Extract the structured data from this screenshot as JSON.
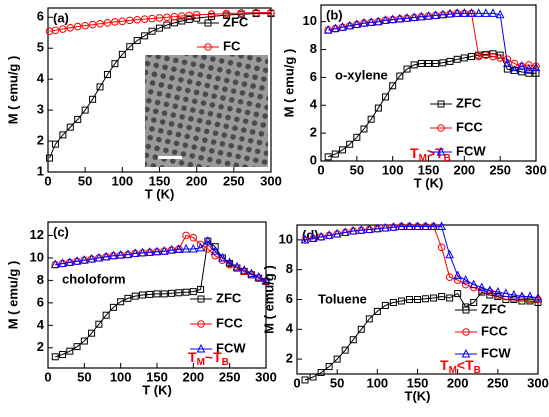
{
  "chart_data": [
    {
      "type": "line",
      "panel_label": "(a)",
      "x_label": "T (K)",
      "y_label": "M ( emu/g )",
      "x": [
        2,
        10,
        20,
        30,
        40,
        50,
        60,
        70,
        80,
        90,
        100,
        110,
        120,
        130,
        140,
        150,
        160,
        170,
        180,
        190,
        200,
        220,
        240,
        260,
        280,
        300
      ],
      "xlim": [
        0,
        300
      ],
      "xticks": [
        0,
        50,
        100,
        150,
        200,
        250,
        300
      ],
      "ylim": [
        1,
        6.3
      ],
      "yticks": [
        1,
        2,
        3,
        4,
        5,
        6
      ],
      "series": [
        {
          "name": "ZFC",
          "color": "#000000",
          "marker": "square",
          "values": [
            1.45,
            1.9,
            2.2,
            2.45,
            2.7,
            3.0,
            3.35,
            3.75,
            4.15,
            4.5,
            4.8,
            5.05,
            5.25,
            5.4,
            5.55,
            5.65,
            5.75,
            5.82,
            5.88,
            5.93,
            5.97,
            6.03,
            6.07,
            6.1,
            6.12,
            6.12
          ]
        },
        {
          "name": "FC",
          "color": "#ff0000",
          "marker": "circle",
          "values": [
            5.55,
            5.58,
            5.62,
            5.66,
            5.7,
            5.73,
            5.76,
            5.79,
            5.82,
            5.85,
            5.87,
            5.9,
            5.92,
            5.94,
            5.96,
            5.98,
            6.0,
            6.02,
            6.04,
            6.06,
            6.08,
            6.1,
            6.12,
            6.14,
            6.15,
            6.15
          ]
        }
      ]
    },
    {
      "type": "line",
      "panel_label": "(b)",
      "x_label": "T (K)",
      "y_label": "M ( emu/g )",
      "annotation": "o-xylene",
      "condition": [
        "T",
        "M",
        ">",
        "T",
        "B"
      ],
      "condition_color": "#ff0000",
      "x": [
        10,
        20,
        30,
        40,
        50,
        60,
        70,
        80,
        90,
        100,
        110,
        120,
        130,
        140,
        150,
        160,
        170,
        180,
        190,
        200,
        210,
        220,
        230,
        240,
        250,
        260,
        270,
        280,
        290,
        300
      ],
      "xlim": [
        0,
        300
      ],
      "xticks": [
        0,
        50,
        100,
        150,
        200,
        250,
        300
      ],
      "ylim": [
        0,
        11.2
      ],
      "yticks": [
        0,
        2,
        4,
        6,
        8,
        10
      ],
      "series": [
        {
          "name": "ZFC",
          "color": "#000000",
          "marker": "square",
          "values": [
            0.3,
            0.5,
            0.8,
            1.2,
            1.7,
            2.3,
            3.0,
            3.8,
            4.6,
            5.4,
            6.1,
            6.6,
            6.9,
            7.0,
            7.0,
            7.0,
            7.05,
            7.15,
            7.3,
            7.4,
            7.5,
            7.6,
            7.65,
            7.7,
            7.6,
            6.6,
            6.5,
            6.4,
            6.3,
            6.3
          ]
        },
        {
          "name": "FCC",
          "color": "#ff0000",
          "marker": "circle",
          "values": [
            9.4,
            9.5,
            9.6,
            9.7,
            9.8,
            9.9,
            9.95,
            10.0,
            10.1,
            10.15,
            10.2,
            10.25,
            10.3,
            10.35,
            10.4,
            10.45,
            10.5,
            10.55,
            10.6,
            10.6,
            10.6,
            7.5,
            7.6,
            7.5,
            7.4,
            7.3,
            7.0,
            6.8,
            6.9,
            6.8
          ]
        },
        {
          "name": "FCW",
          "color": "#0000ff",
          "marker": "triangle",
          "values": [
            9.4,
            9.5,
            9.6,
            9.7,
            9.8,
            9.9,
            9.95,
            10.0,
            10.1,
            10.15,
            10.2,
            10.25,
            10.3,
            10.35,
            10.4,
            10.45,
            10.5,
            10.55,
            10.6,
            10.6,
            10.6,
            10.6,
            10.6,
            10.6,
            10.5,
            7.0,
            6.5,
            6.8,
            6.6,
            6.7
          ]
        }
      ]
    },
    {
      "type": "line",
      "panel_label": "(c)",
      "x_label": "T (K)",
      "y_label": "M ( emu/g )",
      "annotation": "choloform",
      "condition": [
        "T",
        "M",
        "~",
        "T",
        "B"
      ],
      "condition_color": "#ff0000",
      "x": [
        10,
        20,
        30,
        40,
        50,
        60,
        70,
        80,
        90,
        100,
        110,
        120,
        130,
        140,
        150,
        160,
        170,
        180,
        190,
        200,
        210,
        220,
        230,
        240,
        250,
        260,
        270,
        280,
        290,
        300
      ],
      "xlim": [
        0,
        300
      ],
      "xticks": [
        0,
        50,
        100,
        150,
        200,
        250,
        300
      ],
      "ylim": [
        0.2,
        13.2
      ],
      "yticks": [
        2,
        4,
        6,
        8,
        10,
        12
      ],
      "series": [
        {
          "name": "ZFC",
          "color": "#000000",
          "marker": "square",
          "values": [
            1.2,
            1.4,
            1.7,
            2.1,
            2.6,
            3.3,
            4.1,
            4.9,
            5.6,
            6.1,
            6.4,
            6.6,
            6.7,
            6.75,
            6.8,
            6.8,
            6.85,
            6.9,
            6.95,
            7.0,
            7.2,
            11.5,
            11.0,
            10.0,
            9.5,
            9.1,
            8.8,
            8.5,
            8.2,
            7.9
          ]
        },
        {
          "name": "FCC",
          "color": "#ff0000",
          "marker": "circle",
          "values": [
            9.4,
            9.5,
            9.6,
            9.7,
            9.8,
            9.9,
            10.0,
            10.1,
            10.2,
            10.25,
            10.3,
            10.4,
            10.45,
            10.5,
            10.55,
            10.6,
            10.7,
            10.8,
            12.0,
            11.8,
            11.2,
            10.8,
            10.2,
            9.8,
            9.4,
            9.1,
            8.8,
            8.5,
            8.2,
            7.9
          ]
        },
        {
          "name": "FCW",
          "color": "#0000ff",
          "marker": "triangle",
          "values": [
            9.4,
            9.5,
            9.6,
            9.7,
            9.8,
            9.9,
            10.0,
            10.1,
            10.2,
            10.25,
            10.3,
            10.4,
            10.45,
            10.5,
            10.55,
            10.6,
            10.7,
            10.75,
            10.8,
            10.8,
            10.9,
            11.5,
            10.6,
            10.0,
            9.6,
            9.2,
            8.9,
            8.6,
            8.3,
            8.0
          ]
        }
      ]
    },
    {
      "type": "line",
      "panel_label": "(d)",
      "x_label": "T(K)",
      "y_label": "M ( emu/g )",
      "annotation": "Toluene",
      "condition": [
        "T",
        "M",
        "<",
        "T",
        "B"
      ],
      "condition_color": "#ff0000",
      "x": [
        10,
        20,
        30,
        40,
        50,
        60,
        70,
        80,
        90,
        100,
        110,
        120,
        130,
        140,
        150,
        160,
        170,
        180,
        190,
        200,
        210,
        220,
        230,
        240,
        250,
        260,
        270,
        280,
        290,
        300
      ],
      "xlim": [
        0,
        300
      ],
      "xticks": [
        0,
        50,
        100,
        150,
        200,
        250,
        300
      ],
      "ylim": [
        1,
        11
      ],
      "yticks": [
        2,
        4,
        6,
        8,
        10
      ],
      "series": [
        {
          "name": "ZFC",
          "color": "#000000",
          "marker": "square",
          "values": [
            0.6,
            0.8,
            1.1,
            1.5,
            2.0,
            2.6,
            3.3,
            4.0,
            4.7,
            5.2,
            5.6,
            5.8,
            5.9,
            6.0,
            6.0,
            6.05,
            6.1,
            6.2,
            6.1,
            6.4,
            5.5,
            5.8,
            6.5,
            6.3,
            6.2,
            6.0,
            6.0,
            5.9,
            5.9,
            5.8
          ]
        },
        {
          "name": "FCC",
          "color": "#ff0000",
          "marker": "circle",
          "values": [
            10.0,
            10.1,
            10.2,
            10.3,
            10.4,
            10.5,
            10.6,
            10.65,
            10.7,
            10.75,
            10.8,
            10.85,
            10.9,
            10.9,
            10.9,
            10.9,
            10.9,
            9.5,
            7.5,
            7.3,
            7.0,
            6.8,
            6.6,
            6.5,
            6.3,
            6.2,
            6.1,
            6.1,
            6.0,
            6.0
          ]
        },
        {
          "name": "FCW",
          "color": "#0000ff",
          "marker": "triangle",
          "values": [
            10.0,
            10.1,
            10.2,
            10.3,
            10.4,
            10.5,
            10.6,
            10.65,
            10.7,
            10.75,
            10.8,
            10.85,
            10.9,
            10.9,
            10.9,
            10.9,
            10.9,
            10.9,
            9.0,
            7.6,
            7.3,
            7.0,
            6.8,
            6.6,
            6.5,
            6.4,
            6.3,
            6.2,
            6.2,
            6.1
          ]
        }
      ]
    }
  ]
}
